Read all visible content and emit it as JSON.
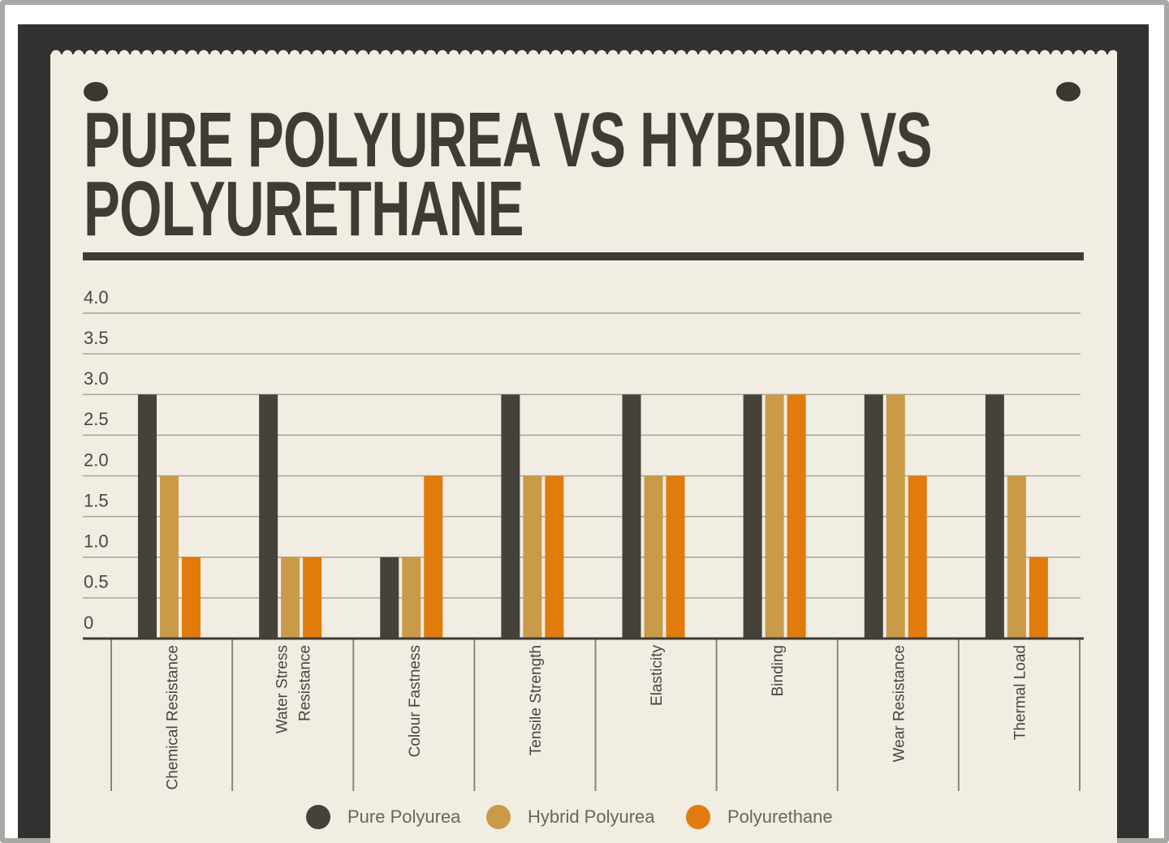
{
  "chart_data": {
    "type": "bar",
    "title": "PURE POLYUREA VS HYBRID VS POLYURETHANE",
    "categories": [
      "Chemical Resistance",
      "Water Stress Resistance",
      "Colour Fastness",
      "Tensile Strength",
      "Elasticity",
      "Binding",
      "Wear Resistance",
      "Thermal Load"
    ],
    "series": [
      {
        "name": "Pure Polyurea",
        "color": "#45423a",
        "values": [
          3,
          3,
          1,
          3,
          3,
          3,
          3,
          3
        ]
      },
      {
        "name": "Hybrid Polyurea",
        "color": "#c99a48",
        "values": [
          2,
          1,
          1,
          2,
          2,
          3,
          3,
          2
        ]
      },
      {
        "name": "Polyurethane",
        "color": "#e07b0c",
        "values": [
          1,
          1,
          2,
          2,
          2,
          3,
          2,
          1
        ]
      }
    ],
    "ylim": [
      0,
      4
    ],
    "yticks": [
      0,
      {
        "value": 0.5,
        "label": "0.5"
      },
      {
        "value": 1,
        "label": "1.0"
      },
      {
        "value": 1.5,
        "label": "1.5"
      },
      {
        "value": 2,
        "label": "2.0"
      },
      {
        "value": 2.5,
        "label": "2.5"
      },
      {
        "value": 3,
        "label": "3.0"
      },
      {
        "value": 3.5,
        "label": "3.5"
      },
      {
        "value": 4,
        "label": "4.0"
      }
    ],
    "grid": true,
    "legend": "bottom"
  }
}
